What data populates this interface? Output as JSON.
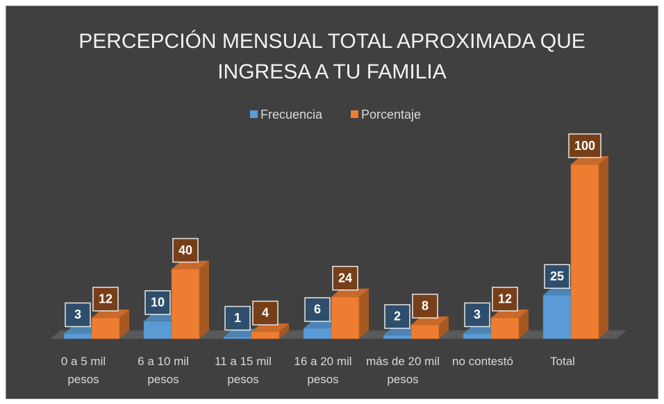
{
  "chart_data": {
    "type": "bar3d",
    "title": "PERCEPCIÓN MENSUAL TOTAL APROXIMADA QUE INGRESA A TU FAMILIA",
    "categories": [
      "0 a 5 mil pesos",
      "6 a 10 mil pesos",
      "11 a 15 mil pesos",
      "16 a 20 mil pesos",
      "más de 20 mil pesos",
      "no contestó",
      "Total"
    ],
    "series": [
      {
        "name": "Frecuencia",
        "color": "#5b9bd5",
        "values": [
          3,
          10,
          1,
          6,
          2,
          3,
          25
        ]
      },
      {
        "name": "Porcentaje",
        "color": "#ed7d31",
        "values": [
          12,
          40,
          4,
          24,
          8,
          12,
          100
        ]
      }
    ],
    "legend": "top"
  }
}
